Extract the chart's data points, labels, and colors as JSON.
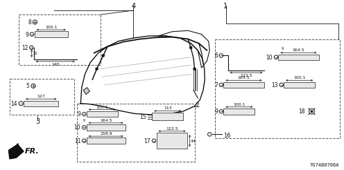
{
  "bg_color": "#ffffff",
  "diagram_id": "TG74B0706A",
  "gray": "#555555",
  "lgray": "#aaaaaa",
  "black": "#111111"
}
